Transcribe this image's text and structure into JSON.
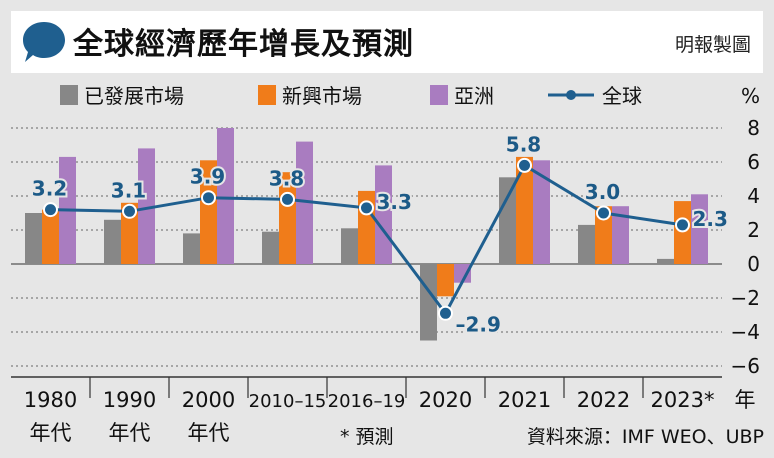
{
  "header": {
    "title": "全球經濟歷年增長及預測",
    "credit": "明報製圖"
  },
  "colors": {
    "developed": "#878787",
    "emerging": "#f07c1a",
    "asia": "#a97cc0",
    "global": "#1f5f8f"
  },
  "footer": {
    "forecast_note": "* 預測",
    "source": "資料來源：IMF WEO、UBP"
  },
  "chart_data": {
    "type": "bar",
    "categories": [
      [
        "1980",
        "年代"
      ],
      [
        "1990",
        "年代"
      ],
      [
        "2000",
        "年代"
      ],
      [
        "2010–15",
        ""
      ],
      [
        "2016–19",
        ""
      ],
      [
        "2020",
        ""
      ],
      [
        "2021",
        ""
      ],
      [
        "2022",
        ""
      ],
      [
        "2023*",
        ""
      ]
    ],
    "x_unit": "年",
    "ylabel": "%",
    "ylim": [
      -6,
      8
    ],
    "yticks": [
      8,
      6,
      4,
      2,
      0,
      -2,
      -4,
      -6
    ],
    "ytick_labels": [
      "8",
      "6",
      "4",
      "2",
      "0",
      "−2",
      "−4",
      "−6"
    ],
    "legend_position": "top",
    "series": [
      {
        "name": "已發展市場",
        "type": "bar",
        "color_key": "developed",
        "values": [
          3.0,
          2.6,
          1.8,
          1.9,
          2.1,
          -4.5,
          5.1,
          2.3,
          0.3
        ]
      },
      {
        "name": "新興市場",
        "type": "bar",
        "color_key": "emerging",
        "values": [
          3.2,
          3.6,
          6.1,
          5.4,
          4.3,
          -1.9,
          6.3,
          3.4,
          3.7
        ]
      },
      {
        "name": "亞洲",
        "type": "bar",
        "color_key": "asia",
        "values": [
          6.3,
          6.8,
          8.0,
          7.2,
          5.8,
          -1.1,
          6.1,
          3.4,
          4.1
        ]
      },
      {
        "name": "全球",
        "type": "line",
        "color_key": "global",
        "values": [
          3.2,
          3.1,
          3.9,
          3.8,
          3.3,
          -2.9,
          5.8,
          3.0,
          2.3
        ]
      }
    ],
    "data_labels": [
      "3.2",
      "3.1",
      "3.9",
      "3.8",
      "3.3",
      "–2.9",
      "5.8",
      "3.0",
      "2.3"
    ]
  }
}
